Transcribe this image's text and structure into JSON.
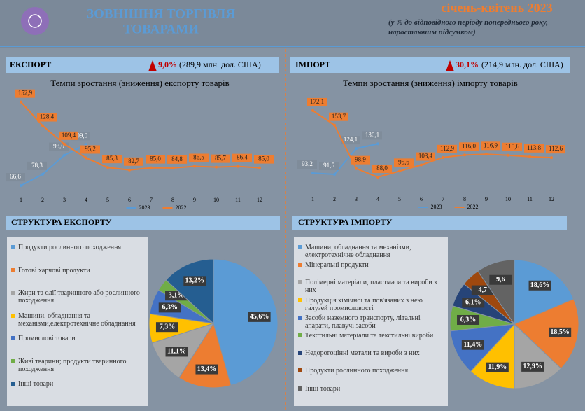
{
  "header": {
    "title_line1": "ЗОВНІШНЯ ТОРГІВЛЯ",
    "title_line2": "ТОВАРАМИ",
    "period": "січень-квітень 2023",
    "note": "(у % до відповідного періоду попереднього року, наростаючим підсумком)"
  },
  "export": {
    "label": "ЕКСПОРТ",
    "growth": "9,0%",
    "total": "(289,9 млн. дол. США)"
  },
  "import": {
    "label": "ІМПОРТ",
    "growth": "30,1%",
    "total": "(214,9 млн. дол. США)"
  },
  "chart_data": [
    {
      "type": "line",
      "title": "Темпи зростання (зниження) експорту товарів",
      "categories": [
        "1",
        "2",
        "3",
        "4",
        "5",
        "6",
        "7",
        "8",
        "9",
        "10",
        "11",
        "12"
      ],
      "ylim": [
        50,
        170
      ],
      "series": [
        {
          "name": "2023",
          "color": "#5b9bd5",
          "values": [
            66.6,
            78.3,
            98.0,
            109.0,
            null,
            null,
            null,
            null,
            null,
            null,
            null,
            null
          ],
          "value_labels": [
            "66,6",
            "78,3",
            "98,0",
            "109,0",
            null,
            null,
            null,
            null,
            null,
            null,
            null,
            null
          ]
        },
        {
          "name": "2022",
          "color": "#ed7d31",
          "values": [
            152.9,
            128.4,
            109.4,
            95.2,
            85.3,
            82.7,
            85.0,
            84.8,
            86.5,
            85.7,
            86.4,
            85.0
          ],
          "value_labels": [
            "152,9",
            "128,4",
            "109,4",
            "95,2",
            "85,3",
            "82,7",
            "85,0",
            "84,8",
            "86,5",
            "85,7",
            "86,4",
            "85,0"
          ]
        }
      ]
    },
    {
      "type": "line",
      "title": "Темпи зростання (зниження) імпорту товарів",
      "categories": [
        "1",
        "2",
        "3",
        "4",
        "5",
        "6",
        "7",
        "8",
        "9",
        "10",
        "11",
        "12"
      ],
      "ylim": [
        80,
        180
      ],
      "series": [
        {
          "name": "2023",
          "color": "#5b9bd5",
          "values": [
            93.2,
            91.5,
            124.1,
            130.1,
            null,
            null,
            null,
            null,
            null,
            null,
            null,
            null
          ],
          "value_labels": [
            "93,2",
            "91,5",
            "124,1",
            "130,1",
            null,
            null,
            null,
            null,
            null,
            null,
            null,
            null
          ]
        },
        {
          "name": "2022",
          "color": "#ed7d31",
          "values": [
            172.1,
            153.7,
            98.9,
            88.0,
            95.6,
            103.4,
            112.9,
            116.0,
            116.9,
            115.6,
            113.8,
            112.6
          ],
          "value_labels": [
            "172,1",
            "153,7",
            "98,9",
            "88,0",
            "95,6",
            "103,4",
            "112,9",
            "116,0",
            "116,9",
            "115,6",
            "113,8",
            "112,6"
          ]
        }
      ]
    },
    {
      "type": "pie",
      "title": "СТРУКТУРА ЕКСПОРТУ",
      "categories": [
        "Продукти рослинного походження",
        "Готові харчові продукти",
        "Жири та олії тваринного або рослинного походження",
        "Машини, обладнання та механізми,електротехнічне обладнання",
        "Промислові товари",
        "Живі тварини; продукти тваринного походження",
        "Інші товари"
      ],
      "values": [
        45.6,
        13.4,
        11.1,
        7.3,
        6.3,
        3.1,
        13.2
      ],
      "value_labels": [
        "45,6%",
        "13,4%",
        "11,1%",
        "7,3%",
        "6,3%",
        "3,1%",
        "13,2%"
      ],
      "colors": [
        "#5b9bd5",
        "#ed7d31",
        "#a5a5a5",
        "#ffc000",
        "#4472c4",
        "#70ad47",
        "#255e91"
      ]
    },
    {
      "type": "pie",
      "title": "СТРУКТУРА  ІМПОРТУ",
      "categories": [
        "Машини, обладнання та механізми, електротехнічне обладнання",
        "Мінеральні продукти",
        "Полімерні матеріали, пластмаси та вироби з них",
        "Продукція хімічної та пов'язаних з нею галузей промисловості",
        "Засоби наземного транспорту, літальні апарати, плавучі засоби",
        "Текстильні матеріали та текстильні вироби",
        "Недорогоцінні метали та вироби з них",
        "Продукти рослинного походження",
        "Інші товари"
      ],
      "values": [
        18.6,
        18.5,
        12.9,
        11.9,
        11.4,
        6.3,
        6.1,
        4.7,
        9.6
      ],
      "value_labels": [
        "18,6%",
        "18,5%",
        "12,9%",
        "11,9%",
        "11,4%",
        "6,3%",
        "6,1%",
        "4,7",
        "9,6"
      ],
      "colors": [
        "#5b9bd5",
        "#ed7d31",
        "#a5a5a5",
        "#ffc000",
        "#4472c4",
        "#70ad47",
        "#264478",
        "#9e480e",
        "#636363"
      ]
    }
  ]
}
